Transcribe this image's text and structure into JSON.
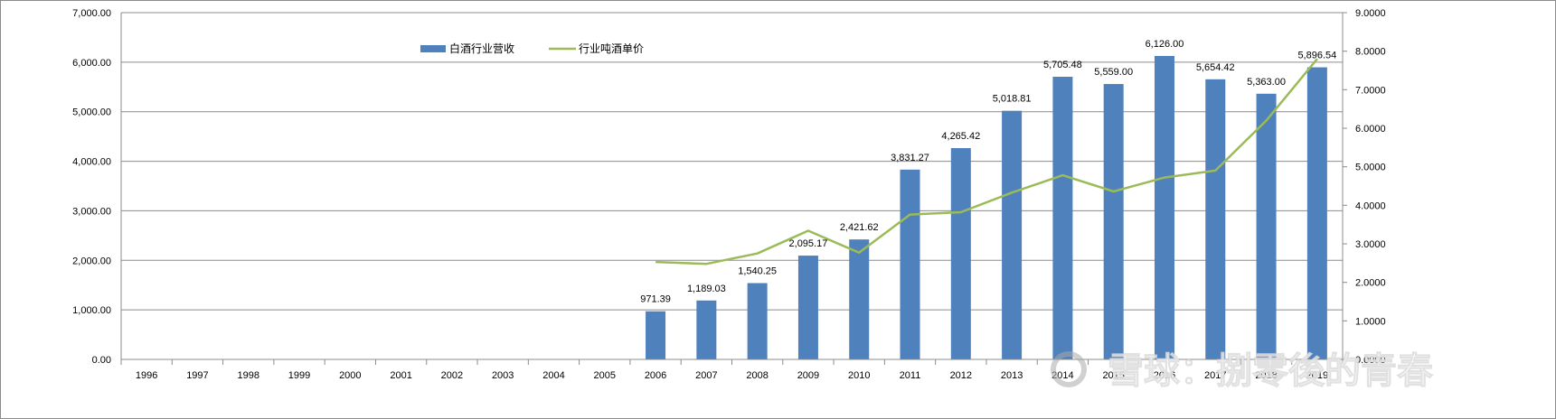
{
  "chart_data": {
    "type": "bar",
    "categories": [
      "1996",
      "1997",
      "1998",
      "1999",
      "2000",
      "2001",
      "2002",
      "2003",
      "2004",
      "2005",
      "2006",
      "2007",
      "2008",
      "2009",
      "2010",
      "2011",
      "2012",
      "2013",
      "2014",
      "2015",
      "2016",
      "2017",
      "2018",
      "2019"
    ],
    "series": [
      {
        "name": "白酒行业营收",
        "type": "bar",
        "axis": "left",
        "color": "#4F81BD",
        "values": [
          null,
          null,
          null,
          null,
          null,
          null,
          null,
          null,
          null,
          null,
          971.39,
          1189.03,
          1540.25,
          2095.17,
          2421.62,
          3831.27,
          4265.42,
          5018.81,
          5705.48,
          5559.0,
          6126.0,
          5654.42,
          5363.0,
          5896.54
        ],
        "labels": [
          null,
          null,
          null,
          null,
          null,
          null,
          null,
          null,
          null,
          null,
          "971.39",
          "1,189.03",
          "1,540.25",
          "2,095.17",
          "2,421.62",
          "3,831.27",
          "4,265.42",
          "5,018.81",
          "5,705.48",
          "5,559.00",
          "6,126.00",
          "5,654.42",
          "5,363.00",
          "5,896.54"
        ]
      },
      {
        "name": "行业吨酒单价",
        "type": "line",
        "axis": "right",
        "color": "#9BBB59",
        "values": [
          null,
          null,
          null,
          null,
          null,
          null,
          null,
          null,
          null,
          null,
          2.53,
          2.48,
          2.75,
          3.34,
          2.77,
          3.76,
          3.82,
          4.33,
          4.78,
          4.36,
          4.72,
          4.9,
          6.2,
          7.8
        ]
      }
    ],
    "y_left": {
      "min": 0,
      "max": 7000,
      "ticks": [
        "0.00",
        "1,000.00",
        "2,000.00",
        "3,000.00",
        "4,000.00",
        "5,000.00",
        "6,000.00",
        "7,000.00"
      ]
    },
    "y_right": {
      "min": 0,
      "max": 9,
      "ticks": [
        "0.0000",
        "1.0000",
        "2.0000",
        "3.0000",
        "4.0000",
        "5.0000",
        "6.0000",
        "7.0000",
        "8.0000",
        "9.0000"
      ]
    },
    "grid": true,
    "legend_position": "top-left",
    "title": "",
    "xlabel": "",
    "ylabel": ""
  },
  "watermark": {
    "text": "雪球：捌零後的青春"
  },
  "colors": {
    "bar": "#4F81BD",
    "line": "#9BBB59",
    "grid": "#8c8c8c",
    "axis": "#8c8c8c"
  }
}
